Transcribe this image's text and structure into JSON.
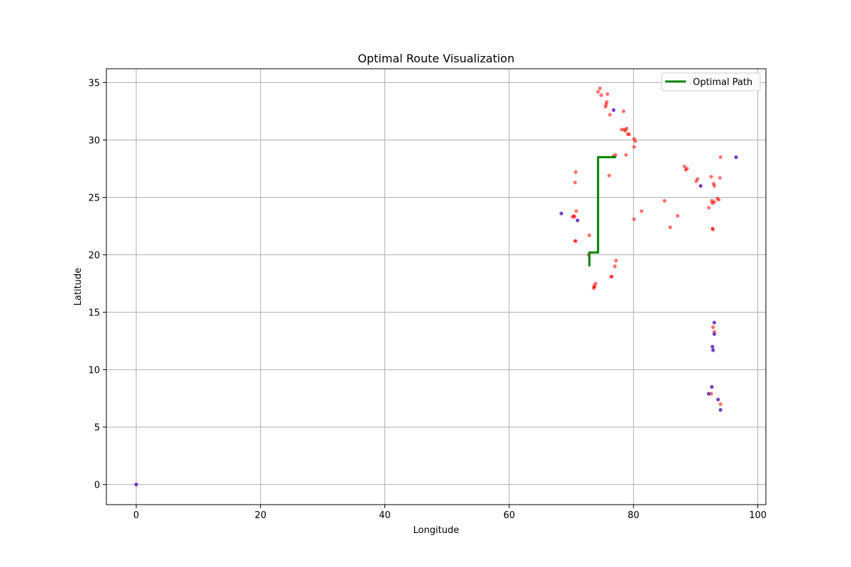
{
  "chart_data": {
    "type": "scatter",
    "title": "Optimal Route Visualization",
    "xlabel": "Longitude",
    "ylabel": "Latitude",
    "xlim": [
      -4.8,
      101.3
    ],
    "ylim": [
      -1.75,
      36.2
    ],
    "xticks": [
      0,
      20,
      40,
      60,
      80,
      100
    ],
    "yticks": [
      0,
      5,
      10,
      15,
      20,
      25,
      30,
      35
    ],
    "grid": true,
    "legend_position": "top-right",
    "series": [
      {
        "name": "Optimal Path",
        "kind": "line",
        "color": "#008000",
        "points": [
          [
            77.2,
            28.5
          ],
          [
            74.3,
            28.5
          ],
          [
            74.3,
            20.2
          ],
          [
            72.9,
            20.2
          ],
          [
            72.9,
            19.0
          ]
        ]
      },
      {
        "kind": "scatter",
        "color": "#ff0000",
        "opacity": 0.55,
        "points": [
          [
            74.6,
            34.5
          ],
          [
            74.3,
            34.2
          ],
          [
            74.8,
            33.9
          ],
          [
            75.8,
            34.0
          ],
          [
            75.7,
            33.3
          ],
          [
            75.6,
            33.1
          ],
          [
            75.5,
            32.9
          ],
          [
            76.2,
            32.2
          ],
          [
            78.4,
            32.5
          ],
          [
            78.1,
            30.9
          ],
          [
            78.5,
            30.9
          ],
          [
            78.9,
            31.0
          ],
          [
            78.7,
            30.8
          ],
          [
            79.1,
            30.5
          ],
          [
            79.3,
            30.5
          ],
          [
            80.1,
            30.1
          ],
          [
            80.3,
            29.9
          ],
          [
            80.1,
            29.4
          ],
          [
            78.8,
            28.7
          ],
          [
            76.8,
            28.6
          ],
          [
            77.1,
            28.7
          ],
          [
            76.1,
            26.9
          ],
          [
            70.7,
            27.2
          ],
          [
            70.6,
            26.3
          ],
          [
            70.8,
            23.8
          ],
          [
            70.2,
            23.3
          ],
          [
            70.5,
            23.3
          ],
          [
            70.4,
            23.4
          ],
          [
            72.9,
            21.7
          ],
          [
            70.6,
            21.2
          ],
          [
            70.7,
            21.2
          ],
          [
            72.8,
            20.0
          ],
          [
            77.2,
            19.5
          ],
          [
            77.0,
            19.0
          ],
          [
            76.4,
            18.1
          ],
          [
            76.5,
            18.1
          ],
          [
            73.9,
            17.5
          ],
          [
            73.7,
            17.3
          ],
          [
            73.6,
            17.1
          ],
          [
            73.7,
            17.2
          ],
          [
            81.3,
            23.8
          ],
          [
            80.1,
            23.1
          ],
          [
            85.0,
            24.7
          ],
          [
            85.9,
            22.4
          ],
          [
            87.1,
            23.4
          ],
          [
            88.2,
            27.7
          ],
          [
            88.4,
            27.4
          ],
          [
            88.6,
            27.5
          ],
          [
            90.3,
            26.6
          ],
          [
            90.1,
            26.4
          ],
          [
            92.5,
            26.8
          ],
          [
            92.9,
            26.2
          ],
          [
            93.0,
            26.0
          ],
          [
            93.9,
            26.7
          ],
          [
            94.0,
            28.5
          ],
          [
            92.6,
            24.7
          ],
          [
            92.7,
            24.5
          ],
          [
            93.0,
            24.6
          ],
          [
            93.5,
            24.9
          ],
          [
            93.7,
            24.8
          ],
          [
            92.1,
            24.1
          ],
          [
            92.7,
            22.3
          ],
          [
            92.8,
            22.2
          ],
          [
            92.8,
            13.7
          ],
          [
            93.0,
            13.3
          ],
          [
            92.5,
            7.9
          ],
          [
            94.0,
            7.0
          ]
        ]
      },
      {
        "kind": "scatter",
        "color": "#5c1fb8",
        "opacity": 0.85,
        "points": [
          [
            76.8,
            32.6
          ],
          [
            68.4,
            23.6
          ],
          [
            71.0,
            23.0
          ],
          [
            90.8,
            26.0
          ],
          [
            96.5,
            28.5
          ],
          [
            93.0,
            14.1
          ],
          [
            93.0,
            13.1
          ],
          [
            92.7,
            12.0
          ],
          [
            92.8,
            11.7
          ],
          [
            92.6,
            8.5
          ],
          [
            92.1,
            7.9
          ],
          [
            93.6,
            7.4
          ],
          [
            94.0,
            6.5
          ],
          [
            0.0,
            0.0
          ]
        ]
      }
    ]
  }
}
